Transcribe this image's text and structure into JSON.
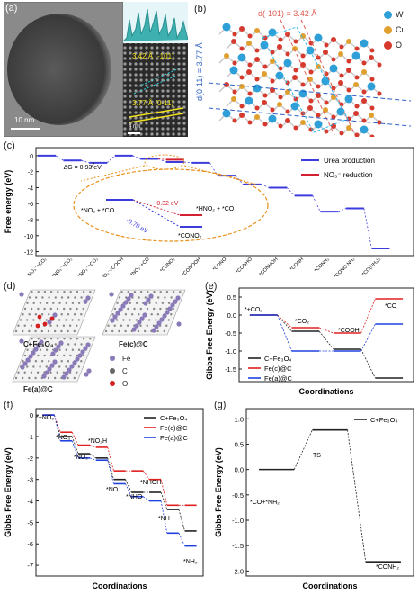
{
  "panels": {
    "a": "(a)",
    "b": "(b)",
    "c": "(c)",
    "d": "(d)",
    "e": "(e)",
    "f": "(f)",
    "g": "(g)"
  },
  "panel_a": {
    "scale_main": "10 nm",
    "d1": "3.42 Å (-101)",
    "d2": "3.77 Å (0-11)",
    "scale_inset": "4 nm"
  },
  "panel_b": {
    "d101": "d(-101) = 3.42 Å",
    "d011": "d(0-11) = 3.77 Å",
    "legend": [
      "W",
      "Cu",
      "O"
    ],
    "colors": {
      "W": "#2f9fd8",
      "Cu": "#e0a030",
      "O": "#d63a2f"
    }
  },
  "chart_c": {
    "ylabel": "Free energy (eV)",
    "yticks": [
      "0",
      "-2",
      "-4",
      "-6",
      "-8",
      "-10",
      "-12"
    ],
    "legend": [
      "Urea production",
      "NO₃⁻ reduction"
    ],
    "delta": "ΔG = 0.93 eV",
    "xticks": [
      "NO₃⁻+CO₂",
      "*NO₃⁻+CO₂",
      "*NO₂⁻+CO₂",
      "*NO₂⁻+COOH",
      "*NO₂⁻+CO",
      "*CONO₂",
      "*CONOOH",
      "*CONO",
      "*CONHO",
      "*CONHOH",
      "*CONH",
      "*CONH₂",
      "*CONO NH₂",
      "*CO(NH₂)₂"
    ],
    "inset": {
      "left": "*NO₂ + *CO",
      "red_label": "-0.32 eV",
      "blue_label": "-0.70 eV",
      "hno2": "*HNO₂ + *CO",
      "cono2": "*CONO₂"
    },
    "colors": {
      "urea": "#3c3cdc",
      "no3": "#d42030",
      "inset": "#e8901a"
    }
  },
  "panel_d": {
    "labels": [
      "C+Fe₃O₄",
      "Fe(c)@C",
      "Fe(a)@C"
    ],
    "legend": [
      "Fe",
      "C",
      "O"
    ]
  },
  "chart_e": {
    "ylabel": "Gibbs Free Energy (eV)",
    "xlabel": "Coordinations",
    "yticks": [
      "0.5",
      "0.0",
      "-0.5",
      "-1.0",
      "-1.5"
    ],
    "labels": [
      "*+CO₂",
      "*CO₂",
      "*COOH",
      "*CO"
    ],
    "legend": [
      "C+Fe₃O₄",
      "Fe(c)@C",
      "Fe(a)@C"
    ]
  },
  "chart_f": {
    "ylabel": "Gibbs Free Energy (eV)",
    "xlabel": "Coordinations",
    "yticks": [
      "0",
      "-1",
      "-2",
      "-3",
      "-4",
      "-5",
      "-6",
      "-7"
    ],
    "labels": [
      "*+NO₃",
      "*NO₃",
      "*NO₂",
      "*NO₂H",
      "*NO",
      "*NHO",
      "*NHOH",
      "*NH",
      "*NH₂"
    ],
    "legend": [
      "C+Fe₃O₄",
      "Fe(c)@C",
      "Fe(a)@C"
    ]
  },
  "chart_g": {
    "ylabel": "Gibbs Free Energy (eV)",
    "xlabel": "Coordinations",
    "yticks": [
      "1.0",
      "0.5",
      "0.0",
      "-0.5",
      "-1.0",
      "-1.5",
      "-2.0"
    ],
    "labels": [
      "*CO+*NH₂",
      "TS",
      "*CONH₂"
    ],
    "legend": [
      "C+Fe₃O₄"
    ]
  }
}
